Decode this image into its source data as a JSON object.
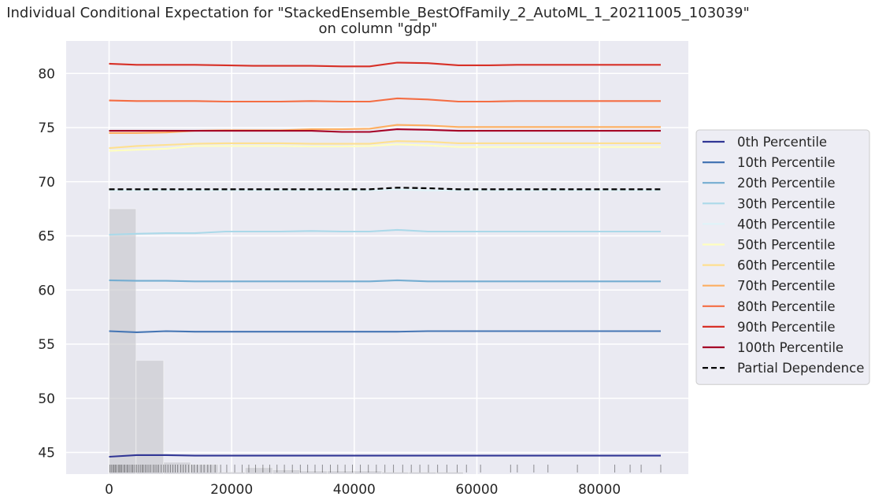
{
  "chart_data": {
    "type": "line",
    "title": "Individual Conditional Expectation for \"StackedEnsemble_BestOfFamily_2_AutoML_1_20211005_103039\"",
    "subtitle": "on column \"gdp\"",
    "xlabel": "",
    "ylabel": "",
    "xlim": [
      -7000,
      94500
    ],
    "ylim": [
      43,
      83
    ],
    "x_ticks": [
      0,
      20000,
      40000,
      60000,
      80000
    ],
    "y_ticks": [
      45,
      50,
      55,
      60,
      65,
      70,
      75,
      80
    ],
    "grid": true,
    "legend_position": "right",
    "x": [
      0,
      4500,
      9300,
      14000,
      19000,
      23500,
      28000,
      33000,
      38000,
      42500,
      47000,
      52000,
      57000,
      62000,
      66500,
      71000,
      76000,
      80500,
      85000,
      90000
    ],
    "series": [
      {
        "name": "0th Percentile",
        "color": "#313695",
        "values": [
          44.6,
          44.75,
          44.75,
          44.7,
          44.7,
          44.7,
          44.7,
          44.7,
          44.7,
          44.7,
          44.7,
          44.7,
          44.7,
          44.7,
          44.7,
          44.7,
          44.7,
          44.7,
          44.7,
          44.7
        ]
      },
      {
        "name": "10th Percentile",
        "color": "#4575b4",
        "values": [
          56.2,
          56.1,
          56.2,
          56.15,
          56.15,
          56.15,
          56.15,
          56.15,
          56.15,
          56.15,
          56.15,
          56.2,
          56.2,
          56.2,
          56.2,
          56.2,
          56.2,
          56.2,
          56.2,
          56.2
        ]
      },
      {
        "name": "20th Percentile",
        "color": "#74add1",
        "values": [
          60.9,
          60.85,
          60.85,
          60.8,
          60.8,
          60.8,
          60.8,
          60.8,
          60.8,
          60.8,
          60.9,
          60.8,
          60.8,
          60.8,
          60.8,
          60.8,
          60.8,
          60.8,
          60.8,
          60.8
        ]
      },
      {
        "name": "30th Percentile",
        "color": "#abd9e9",
        "values": [
          65.1,
          65.2,
          65.25,
          65.25,
          65.4,
          65.4,
          65.4,
          65.45,
          65.4,
          65.4,
          65.55,
          65.4,
          65.4,
          65.4,
          65.4,
          65.4,
          65.4,
          65.4,
          65.4,
          65.4
        ]
      },
      {
        "name": "40th Percentile",
        "color": "#e0f3f8",
        "values": [
          69.2,
          69.2,
          69.2,
          69.2,
          69.2,
          69.2,
          69.2,
          69.2,
          69.2,
          69.2,
          69.3,
          69.2,
          69.2,
          69.2,
          69.2,
          69.2,
          69.2,
          69.2,
          69.2,
          69.2
        ]
      },
      {
        "name": "50th Percentile",
        "color": "#ffffbf",
        "values": [
          72.85,
          72.95,
          73.05,
          73.3,
          73.3,
          73.3,
          73.3,
          73.25,
          73.25,
          73.3,
          73.45,
          73.35,
          73.2,
          73.2,
          73.2,
          73.2,
          73.2,
          73.2,
          73.2,
          73.2
        ]
      },
      {
        "name": "60th Percentile",
        "color": "#fee090",
        "values": [
          73.1,
          73.3,
          73.4,
          73.5,
          73.55,
          73.55,
          73.55,
          73.5,
          73.5,
          73.5,
          73.75,
          73.7,
          73.55,
          73.55,
          73.55,
          73.55,
          73.55,
          73.55,
          73.55,
          73.55
        ]
      },
      {
        "name": "70th Percentile",
        "color": "#fdae61",
        "values": [
          74.5,
          74.5,
          74.55,
          74.7,
          74.75,
          74.75,
          74.75,
          74.85,
          74.85,
          74.9,
          75.25,
          75.2,
          75.05,
          75.05,
          75.05,
          75.05,
          75.05,
          75.05,
          75.05,
          75.05
        ]
      },
      {
        "name": "80th Percentile",
        "color": "#f46d43",
        "values": [
          77.5,
          77.45,
          77.45,
          77.45,
          77.4,
          77.4,
          77.4,
          77.45,
          77.4,
          77.4,
          77.7,
          77.6,
          77.4,
          77.4,
          77.45,
          77.45,
          77.45,
          77.45,
          77.45,
          77.45
        ]
      },
      {
        "name": "90th Percentile",
        "color": "#d73027",
        "values": [
          80.9,
          80.8,
          80.8,
          80.8,
          80.75,
          80.7,
          80.7,
          80.7,
          80.65,
          80.65,
          81.0,
          80.95,
          80.75,
          80.75,
          80.8,
          80.8,
          80.8,
          80.8,
          80.8,
          80.8
        ]
      },
      {
        "name": "100th Percentile",
        "color": "#a50026",
        "values": [
          74.7,
          74.7,
          74.7,
          74.7,
          74.7,
          74.7,
          74.7,
          74.7,
          74.6,
          74.6,
          74.85,
          74.8,
          74.7,
          74.7,
          74.7,
          74.7,
          74.7,
          74.7,
          74.7,
          74.7
        ]
      },
      {
        "name": "Partial Dependence",
        "color": "#000000",
        "dashed": true,
        "values": [
          69.3,
          69.3,
          69.3,
          69.3,
          69.3,
          69.3,
          69.3,
          69.3,
          69.3,
          69.3,
          69.45,
          69.4,
          69.3,
          69.3,
          69.3,
          69.3,
          69.3,
          69.3,
          69.3,
          69.3
        ]
      }
    ],
    "histogram": {
      "bins": [
        [
          0,
          4400,
          67.5
        ],
        [
          4400,
          8900,
          53.5
        ],
        [
          8900,
          13300,
          44.1
        ],
        [
          13300,
          17800,
          43.9
        ],
        [
          17800,
          22200,
          43.2
        ],
        [
          22200,
          26700,
          43.6
        ],
        [
          26700,
          31100,
          43.4
        ],
        [
          31100,
          35600,
          43.3
        ],
        [
          35600,
          40000,
          43.3
        ],
        [
          40000,
          44500,
          43.3
        ],
        [
          44500,
          48900,
          43.2
        ],
        [
          48900,
          53400,
          43.2
        ],
        [
          53400,
          57800,
          43.2
        ]
      ]
    },
    "rug": [
      120,
      350,
      600,
      800,
      1000,
      1200,
      1500,
      1700,
      1900,
      2100,
      2400,
      2600,
      2900,
      3100,
      3400,
      3700,
      3900,
      4200,
      4500,
      4800,
      5100,
      5400,
      5600,
      5900,
      6200,
      6500,
      6800,
      7200,
      7500,
      7800,
      8100,
      8500,
      8900,
      9200,
      9600,
      10000,
      10400,
      10800,
      11200,
      11700,
      12100,
      12500,
      13000,
      13500,
      13900,
      14400,
      15000,
      15500,
      16100,
      16600,
      17300,
      18200,
      19200,
      20500,
      21700,
      22800,
      23900,
      25100,
      26200,
      27400,
      28600,
      29900,
      31200,
      32400,
      33600,
      34800,
      36100,
      37300,
      38500,
      39700,
      41000,
      42300,
      43600,
      45000,
      46400,
      47900,
      49300,
      50700,
      52100,
      53600,
      55100,
      56800,
      58300,
      60600,
      65500,
      66600,
      69300,
      71600,
      76400,
      82500,
      85000,
      86800,
      90000
    ],
    "colors": {
      "plot_bg": "#eaeaf2",
      "grid": "#ffffff",
      "histogram": "#c8c8cc"
    }
  }
}
